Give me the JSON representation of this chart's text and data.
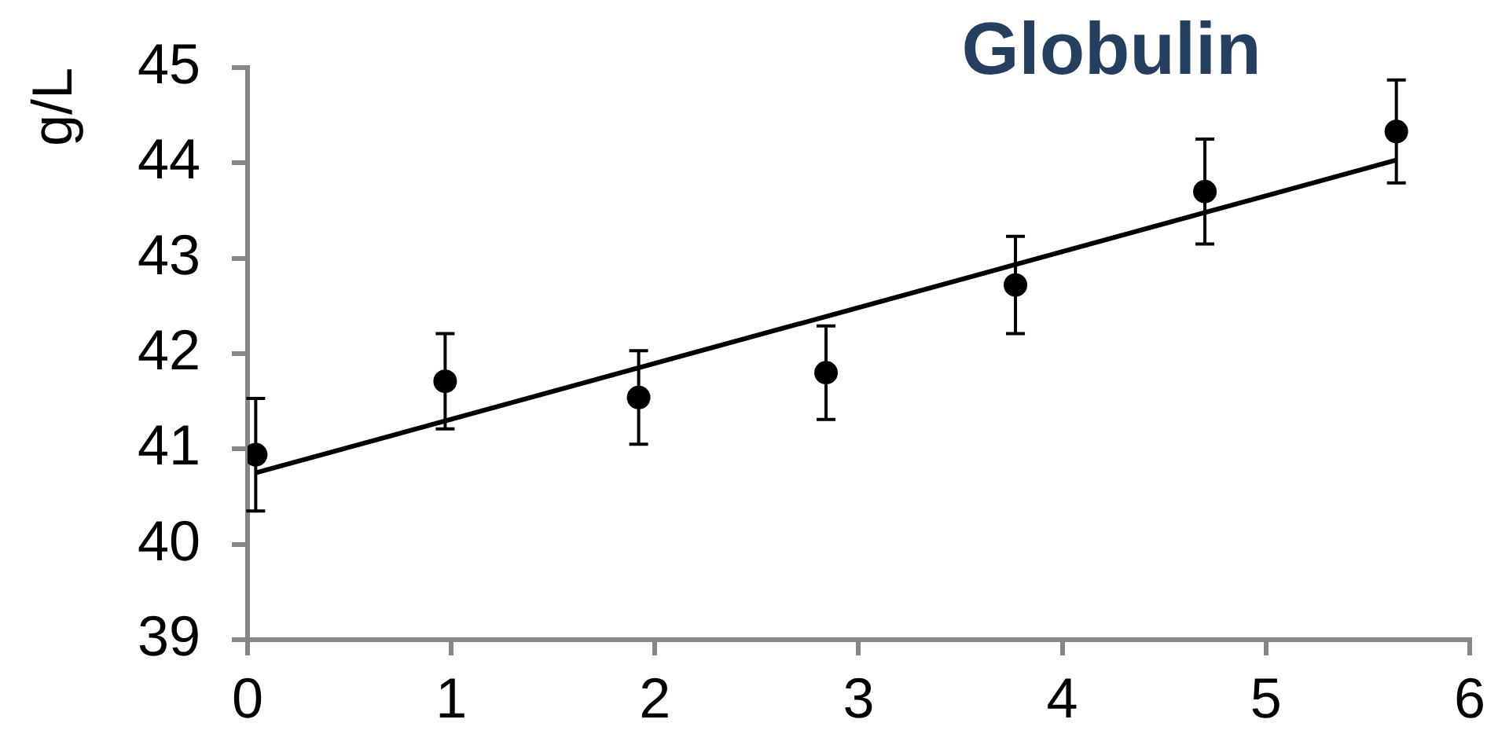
{
  "chart_data": {
    "type": "scatter",
    "title": "Globulin",
    "ylabel": "g/L",
    "xlim": [
      0,
      6
    ],
    "xticks": [
      0,
      1,
      2,
      3,
      4,
      5,
      6
    ],
    "ylim": [
      39,
      45
    ],
    "yticks": [
      39,
      40,
      41,
      42,
      43,
      44,
      45
    ],
    "grid": false,
    "legend": false,
    "series": [
      {
        "type": "scatter",
        "color": "#000000",
        "marker": "circle",
        "x": [
          0.04,
          0.97,
          1.92,
          2.84,
          3.77,
          4.7,
          5.64
        ],
        "values": [
          40.94,
          41.71,
          41.54,
          41.8,
          42.72,
          43.7,
          44.33
        ],
        "errors": [
          0.59,
          0.5,
          0.49,
          0.49,
          0.51,
          0.55,
          0.54
        ]
      },
      {
        "type": "line",
        "color": "#000000",
        "marker": "none",
        "line_style": "solid",
        "x": [
          0.04,
          5.64
        ],
        "values": [
          40.75,
          44.03
        ]
      }
    ]
  }
}
